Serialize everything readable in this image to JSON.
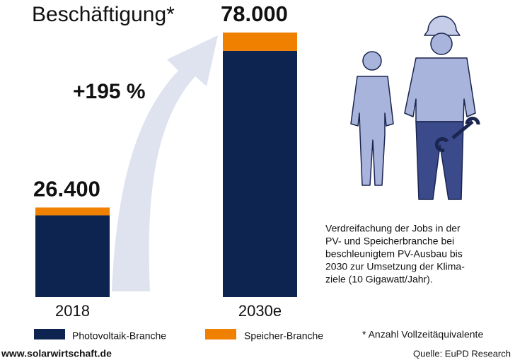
{
  "chart_data": {
    "type": "stacked_bar",
    "title": "Beschäftigung*",
    "annotation": "+195 %",
    "categories": [
      "2018",
      "2030e"
    ],
    "series": [
      {
        "name": "Photovoltaik-Branche",
        "color": "#0d2350",
        "values": [
          24100,
          72600
        ]
      },
      {
        "name": "Speicher-Branche",
        "color": "#f08000",
        "values": [
          2300,
          5400
        ]
      }
    ],
    "totals": {
      "values": [
        26400,
        78000
      ],
      "value_labels": [
        "26.400",
        "78.000"
      ]
    },
    "description": [
      "Verdreifachung der Jobs in der",
      "PV- und Speicherbranche bei",
      "beschleunigtem PV-Ausbau bis",
      "2030 zur Umsetzung der Klima-",
      "ziele (10 Gigawatt/Jahr)."
    ],
    "footnote": "* Anzahl Vollzeitäquivalente",
    "website": "www.solarwirtschaft.de",
    "source": "Quelle: EuPD Research"
  }
}
